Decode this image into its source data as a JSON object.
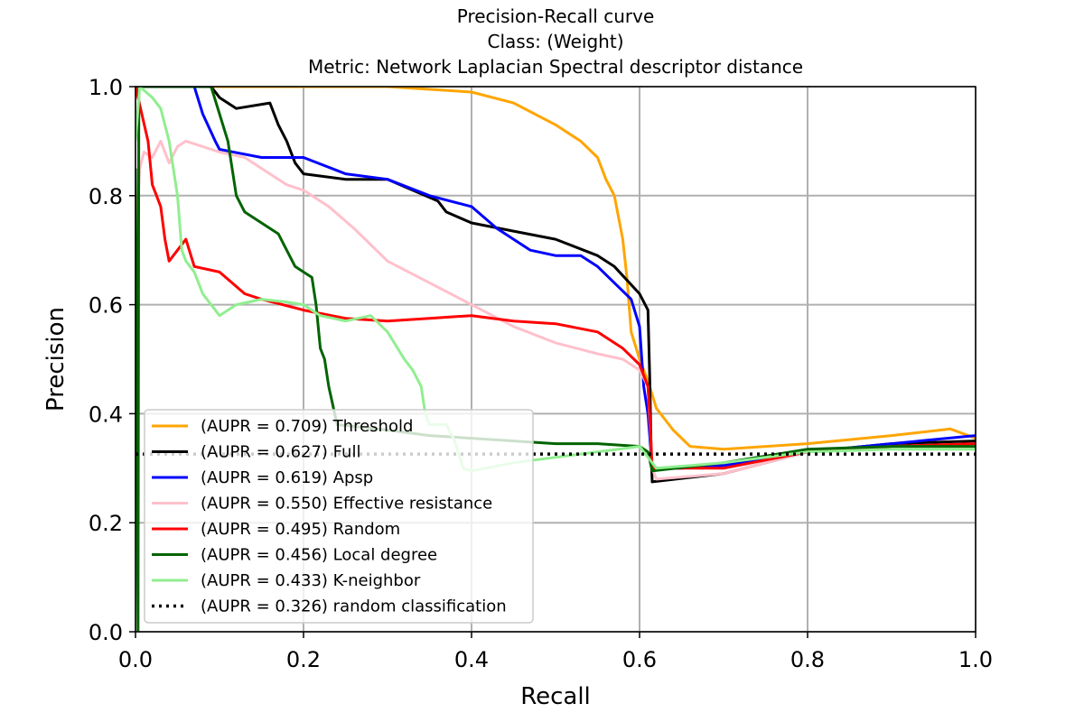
{
  "chart_data": {
    "type": "line",
    "title": [
      "Precision-Recall curve",
      "Class: (Weight)",
      "Metric: Network Laplacian Spectral descriptor distance"
    ],
    "xlabel": "Recall",
    "ylabel": "Precision",
    "xlim": [
      0,
      1
    ],
    "ylim": [
      0,
      1
    ],
    "xticks": [
      "0.0",
      "0.2",
      "0.4",
      "0.6",
      "0.8",
      "1.0"
    ],
    "yticks": [
      "0.0",
      "0.2",
      "0.4",
      "0.6",
      "0.8",
      "1.0"
    ],
    "grid": true,
    "legend_position": "lower-left",
    "series": [
      {
        "name": "(AUPR = 0.709) Threshold",
        "color": "#ffa500",
        "style": "solid",
        "points": [
          [
            0.0,
            1.0
          ],
          [
            0.3,
            1.0
          ],
          [
            0.4,
            0.99
          ],
          [
            0.45,
            0.97
          ],
          [
            0.5,
            0.93
          ],
          [
            0.53,
            0.9
          ],
          [
            0.55,
            0.87
          ],
          [
            0.56,
            0.83
          ],
          [
            0.57,
            0.8
          ],
          [
            0.58,
            0.72
          ],
          [
            0.585,
            0.65
          ],
          [
            0.59,
            0.55
          ],
          [
            0.6,
            0.5
          ],
          [
            0.61,
            0.46
          ],
          [
            0.62,
            0.41
          ],
          [
            0.64,
            0.37
          ],
          [
            0.66,
            0.34
          ],
          [
            0.7,
            0.335
          ],
          [
            0.8,
            0.345
          ],
          [
            0.9,
            0.36
          ],
          [
            0.97,
            0.372
          ],
          [
            1.0,
            0.355
          ]
        ]
      },
      {
        "name": "(AUPR = 0.627) Full",
        "color": "#000000",
        "style": "solid",
        "points": [
          [
            0.0,
            1.0
          ],
          [
            0.09,
            1.0
          ],
          [
            0.1,
            0.98
          ],
          [
            0.12,
            0.96
          ],
          [
            0.16,
            0.97
          ],
          [
            0.17,
            0.93
          ],
          [
            0.18,
            0.9
          ],
          [
            0.19,
            0.86
          ],
          [
            0.2,
            0.84
          ],
          [
            0.25,
            0.83
          ],
          [
            0.3,
            0.83
          ],
          [
            0.33,
            0.81
          ],
          [
            0.36,
            0.79
          ],
          [
            0.37,
            0.77
          ],
          [
            0.4,
            0.75
          ],
          [
            0.45,
            0.735
          ],
          [
            0.5,
            0.72
          ],
          [
            0.55,
            0.69
          ],
          [
            0.57,
            0.67
          ],
          [
            0.6,
            0.62
          ],
          [
            0.61,
            0.59
          ],
          [
            0.612,
            0.47
          ],
          [
            0.614,
            0.32
          ],
          [
            0.615,
            0.275
          ],
          [
            0.7,
            0.29
          ],
          [
            0.8,
            0.33
          ],
          [
            0.9,
            0.345
          ],
          [
            1.0,
            0.35
          ]
        ]
      },
      {
        "name": "(AUPR = 0.619) Apsp",
        "color": "#0000ff",
        "style": "solid",
        "points": [
          [
            0.0,
            1.0
          ],
          [
            0.07,
            1.0
          ],
          [
            0.08,
            0.95
          ],
          [
            0.095,
            0.9
          ],
          [
            0.1,
            0.885
          ],
          [
            0.15,
            0.87
          ],
          [
            0.2,
            0.87
          ],
          [
            0.25,
            0.84
          ],
          [
            0.3,
            0.83
          ],
          [
            0.35,
            0.8
          ],
          [
            0.4,
            0.78
          ],
          [
            0.43,
            0.74
          ],
          [
            0.47,
            0.7
          ],
          [
            0.5,
            0.69
          ],
          [
            0.53,
            0.69
          ],
          [
            0.55,
            0.67
          ],
          [
            0.57,
            0.64
          ],
          [
            0.59,
            0.61
          ],
          [
            0.6,
            0.56
          ],
          [
            0.605,
            0.45
          ],
          [
            0.61,
            0.4
          ],
          [
            0.615,
            0.3
          ],
          [
            0.65,
            0.3
          ],
          [
            0.7,
            0.305
          ],
          [
            0.8,
            0.33
          ],
          [
            0.9,
            0.345
          ],
          [
            1.0,
            0.36
          ]
        ]
      },
      {
        "name": "(AUPR = 0.550) Effective resistance",
        "color": "#ffc0cb",
        "style": "solid",
        "points": [
          [
            0.0,
            0.7
          ],
          [
            0.005,
            0.85
          ],
          [
            0.01,
            0.88
          ],
          [
            0.02,
            0.87
          ],
          [
            0.03,
            0.9
          ],
          [
            0.04,
            0.86
          ],
          [
            0.05,
            0.89
          ],
          [
            0.06,
            0.9
          ],
          [
            0.08,
            0.89
          ],
          [
            0.1,
            0.88
          ],
          [
            0.13,
            0.87
          ],
          [
            0.15,
            0.85
          ],
          [
            0.18,
            0.82
          ],
          [
            0.2,
            0.81
          ],
          [
            0.23,
            0.78
          ],
          [
            0.26,
            0.74
          ],
          [
            0.3,
            0.68
          ],
          [
            0.35,
            0.64
          ],
          [
            0.4,
            0.6
          ],
          [
            0.45,
            0.56
          ],
          [
            0.5,
            0.53
          ],
          [
            0.55,
            0.51
          ],
          [
            0.58,
            0.5
          ],
          [
            0.6,
            0.48
          ],
          [
            0.61,
            0.45
          ],
          [
            0.615,
            0.3
          ],
          [
            0.62,
            0.28
          ],
          [
            0.7,
            0.29
          ],
          [
            0.8,
            0.33
          ],
          [
            0.9,
            0.34
          ],
          [
            1.0,
            0.34
          ]
        ]
      },
      {
        "name": "(AUPR = 0.495) Random",
        "color": "#ff0000",
        "style": "solid",
        "points": [
          [
            0.0,
            1.0
          ],
          [
            0.015,
            0.9
          ],
          [
            0.02,
            0.82
          ],
          [
            0.025,
            0.8
          ],
          [
            0.03,
            0.78
          ],
          [
            0.035,
            0.72
          ],
          [
            0.04,
            0.68
          ],
          [
            0.05,
            0.7
          ],
          [
            0.06,
            0.72
          ],
          [
            0.07,
            0.67
          ],
          [
            0.1,
            0.66
          ],
          [
            0.13,
            0.62
          ],
          [
            0.15,
            0.61
          ],
          [
            0.2,
            0.59
          ],
          [
            0.25,
            0.575
          ],
          [
            0.3,
            0.57
          ],
          [
            0.35,
            0.575
          ],
          [
            0.4,
            0.58
          ],
          [
            0.45,
            0.57
          ],
          [
            0.5,
            0.565
          ],
          [
            0.55,
            0.55
          ],
          [
            0.58,
            0.52
          ],
          [
            0.6,
            0.49
          ],
          [
            0.61,
            0.45
          ],
          [
            0.612,
            0.4
          ],
          [
            0.615,
            0.3
          ],
          [
            0.7,
            0.3
          ],
          [
            0.8,
            0.33
          ],
          [
            0.9,
            0.34
          ],
          [
            1.0,
            0.345
          ]
        ]
      },
      {
        "name": "(AUPR = 0.456) Local degree",
        "color": "#006400",
        "style": "solid",
        "points": [
          [
            0.0,
            0.85
          ],
          [
            0.002,
            0.3
          ],
          [
            0.003,
            0.0
          ],
          [
            0.004,
            1.0
          ],
          [
            0.09,
            1.0
          ],
          [
            0.1,
            0.95
          ],
          [
            0.11,
            0.9
          ],
          [
            0.12,
            0.8
          ],
          [
            0.13,
            0.77
          ],
          [
            0.15,
            0.75
          ],
          [
            0.17,
            0.73
          ],
          [
            0.18,
            0.7
          ],
          [
            0.19,
            0.67
          ],
          [
            0.2,
            0.66
          ],
          [
            0.21,
            0.65
          ],
          [
            0.215,
            0.6
          ],
          [
            0.22,
            0.52
          ],
          [
            0.225,
            0.5
          ],
          [
            0.23,
            0.45
          ],
          [
            0.24,
            0.38
          ],
          [
            0.3,
            0.37
          ],
          [
            0.35,
            0.36
          ],
          [
            0.4,
            0.355
          ],
          [
            0.45,
            0.35
          ],
          [
            0.5,
            0.345
          ],
          [
            0.55,
            0.345
          ],
          [
            0.6,
            0.34
          ],
          [
            0.61,
            0.33
          ],
          [
            0.615,
            0.295
          ],
          [
            0.7,
            0.31
          ],
          [
            0.8,
            0.335
          ],
          [
            0.9,
            0.34
          ],
          [
            1.0,
            0.34
          ]
        ]
      },
      {
        "name": "(AUPR = 0.433) K-neighbor",
        "color": "#90ee90",
        "style": "solid",
        "points": [
          [
            0.0,
            0.9
          ],
          [
            0.005,
            1.0
          ],
          [
            0.02,
            0.98
          ],
          [
            0.03,
            0.96
          ],
          [
            0.04,
            0.9
          ],
          [
            0.05,
            0.8
          ],
          [
            0.055,
            0.7
          ],
          [
            0.06,
            0.68
          ],
          [
            0.07,
            0.66
          ],
          [
            0.08,
            0.62
          ],
          [
            0.09,
            0.6
          ],
          [
            0.1,
            0.58
          ],
          [
            0.12,
            0.6
          ],
          [
            0.15,
            0.61
          ],
          [
            0.18,
            0.605
          ],
          [
            0.2,
            0.6
          ],
          [
            0.22,
            0.58
          ],
          [
            0.25,
            0.57
          ],
          [
            0.28,
            0.58
          ],
          [
            0.3,
            0.55
          ],
          [
            0.32,
            0.5
          ],
          [
            0.33,
            0.48
          ],
          [
            0.34,
            0.45
          ],
          [
            0.345,
            0.4
          ],
          [
            0.35,
            0.38
          ],
          [
            0.37,
            0.38
          ],
          [
            0.38,
            0.35
          ],
          [
            0.39,
            0.3
          ],
          [
            0.4,
            0.295
          ],
          [
            0.45,
            0.31
          ],
          [
            0.5,
            0.32
          ],
          [
            0.55,
            0.33
          ],
          [
            0.6,
            0.34
          ],
          [
            0.615,
            0.31
          ],
          [
            0.62,
            0.3
          ],
          [
            0.7,
            0.31
          ],
          [
            0.8,
            0.33
          ],
          [
            0.9,
            0.335
          ],
          [
            1.0,
            0.335
          ]
        ]
      },
      {
        "name": "(AUPR = 0.326) random classification",
        "color": "#000000",
        "style": "dotted",
        "points": [
          [
            0.0,
            0.326
          ],
          [
            1.0,
            0.326
          ]
        ]
      }
    ]
  }
}
